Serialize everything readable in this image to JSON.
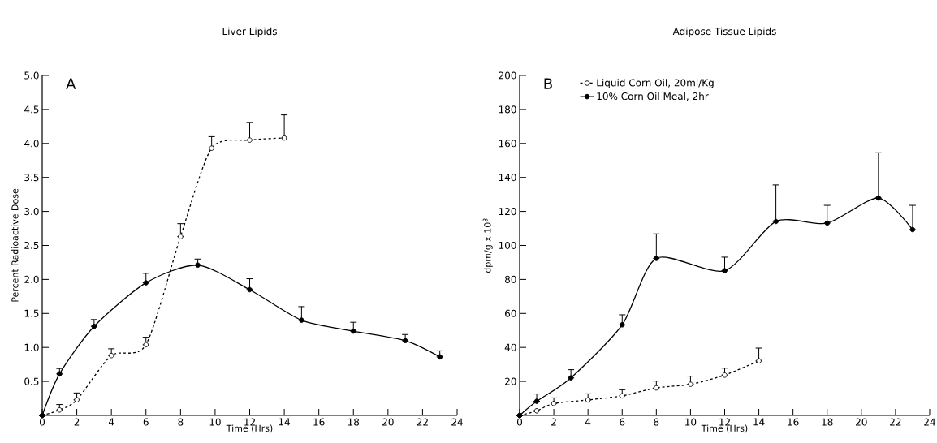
{
  "chart_data": [
    {
      "type": "line",
      "title": "Liver Lipids",
      "xlabel": "Time (Hrs)",
      "ylabel": "Percent Radioactive Dose",
      "annotations": [
        "A"
      ],
      "xlim": [
        0,
        24
      ],
      "ylim": [
        0,
        5
      ],
      "xticks": [
        0,
        2,
        4,
        6,
        8,
        10,
        12,
        14,
        16,
        18,
        20,
        22,
        24
      ],
      "yticks": [
        0.5,
        {
          "value": 1,
          "label": "1.0"
        },
        1.5,
        {
          "value": 2,
          "label": "2.0"
        },
        2.5,
        {
          "value": 3,
          "label": "3.0"
        },
        3.5,
        {
          "value": 4,
          "label": "4.0"
        },
        4.5,
        {
          "value": 5,
          "label": "5.0"
        }
      ],
      "grid": false,
      "legend": false,
      "series": [
        {
          "color": "#000000",
          "line_style": "dashed",
          "marker": "circle",
          "x": [
            0,
            1,
            2,
            4,
            6,
            8,
            9.8,
            12,
            14
          ],
          "values": [
            0,
            0.08,
            0.23,
            0.88,
            1.04,
            2.63,
            3.93,
            4.05,
            4.08
          ],
          "errors": [
            null,
            [
              0.08,
              0.16
            ],
            [
              0.23,
              0.33
            ],
            [
              0.88,
              0.98
            ],
            [
              1.04,
              1.15
            ],
            [
              2.63,
              2.82
            ],
            [
              3.93,
              4.1
            ],
            [
              4.05,
              4.31
            ],
            [
              4.08,
              4.42
            ]
          ]
        },
        {
          "color": "#000000",
          "line_style": "solid",
          "marker": "circle",
          "x": [
            0,
            1,
            3,
            6,
            9,
            12,
            15,
            18,
            21,
            23
          ],
          "values": [
            0,
            0.61,
            1.31,
            1.95,
            2.21,
            1.85,
            1.4,
            1.24,
            1.1,
            0.86
          ],
          "errors": [
            null,
            [
              0.61,
              0.69
            ],
            [
              1.31,
              1.41
            ],
            [
              1.95,
              2.09
            ],
            [
              2.21,
              2.3
            ],
            [
              1.85,
              2.01
            ],
            [
              1.4,
              1.6
            ],
            [
              1.24,
              1.37
            ],
            [
              1.1,
              1.19
            ],
            [
              0.86,
              0.95
            ]
          ]
        }
      ]
    },
    {
      "type": "line",
      "title": "Adipose Tissue Lipids",
      "xlabel": "Time (Hrs)",
      "ylabel": "dpm/g x 10$^{3}$",
      "annotations": [
        "B"
      ],
      "xlim": [
        0,
        24
      ],
      "ylim": [
        0,
        200
      ],
      "xticks": [
        0,
        2,
        4,
        6,
        8,
        10,
        12,
        14,
        16,
        18,
        20,
        22,
        24
      ],
      "yticks": [
        20,
        40,
        60,
        80,
        100,
        120,
        140,
        160,
        180,
        200
      ],
      "grid": false,
      "legend": "top left",
      "series": [
        {
          "name": "Liquid Corn Oil, 20ml/Kg",
          "color": "#000000",
          "line_style": "dashed",
          "marker": "circle",
          "x": [
            0,
            1,
            2,
            4,
            6,
            8,
            10,
            12,
            14
          ],
          "values": [
            0,
            2.7,
            7,
            9.1,
            11.5,
            16.2,
            18.3,
            23.7,
            32.1
          ],
          "errors": [
            null,
            null,
            [
              7,
              10.3
            ],
            [
              9.1,
              12.7
            ],
            [
              11.5,
              15.1
            ],
            [
              16.2,
              20.2
            ],
            [
              18.3,
              23.1
            ],
            [
              23.7,
              27.8
            ],
            [
              32.1,
              39.6
            ]
          ]
        },
        {
          "name": "10% Corn Oil Meal, 2hr",
          "color": "#000000",
          "line_style": "solid",
          "marker": "circle",
          "x": [
            0,
            1,
            3,
            6,
            8,
            12,
            15,
            18,
            21,
            23
          ],
          "values": [
            0,
            8.3,
            22.1,
            53.3,
            92.4,
            85.1,
            114.1,
            113.1,
            127.9,
            109.3
          ],
          "errors": [
            null,
            [
              8.3,
              12.6
            ],
            [
              22.1,
              26.9
            ],
            [
              53.3,
              59.2
            ],
            [
              92.4,
              106.8
            ],
            [
              85.1,
              93.1
            ],
            [
              114.1,
              135.6
            ],
            [
              113.1,
              123.6
            ],
            [
              127.9,
              154.5
            ],
            [
              109.3,
              123.6
            ]
          ]
        }
      ]
    }
  ]
}
